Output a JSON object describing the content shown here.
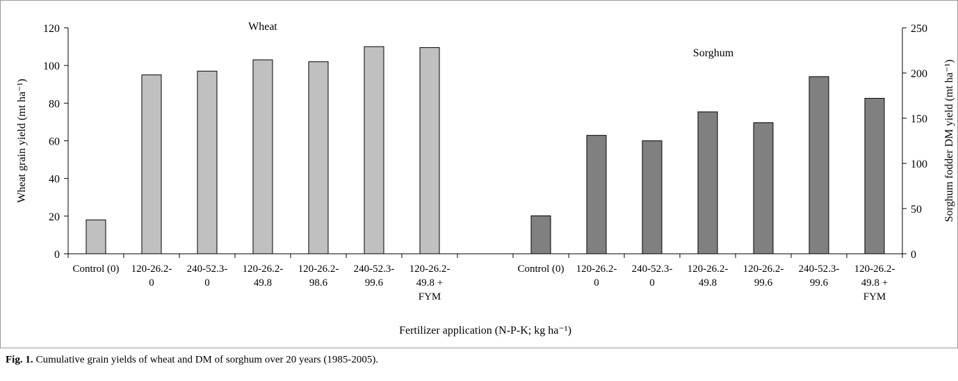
{
  "chart_data": {
    "type": "bar",
    "categories": [
      "Control (0)",
      "120-26.2-\n0",
      "240-52.3-\n0",
      "120-26.2-\n49.8",
      "120-26.2-\n98.6",
      "240-52.3-\n99.6",
      "120-26.2-\n49.8 +\nFYM",
      null,
      "Control (0)",
      "120-26.2-\n0",
      "240-52.3-\n0",
      "120-26.2-\n49.8",
      "120-26.2-\n99.6",
      "240-52.3-\n99.6",
      "120-26.2-\n49.8 +\nFYM"
    ],
    "series": [
      {
        "name": "Wheat",
        "color": "#c0c0c0",
        "values": [
          18,
          95,
          97,
          103,
          102,
          110,
          109.5,
          null,
          null,
          null,
          null,
          null,
          null,
          null,
          null
        ]
      },
      {
        "name": "Sorghum",
        "color": "#808080",
        "axis": "y2",
        "values": [
          null,
          null,
          null,
          null,
          null,
          null,
          null,
          null,
          42,
          131,
          125,
          157,
          145,
          196,
          172
        ]
      }
    ],
    "xlabel": "Fertilizer application (N-P-K; kg ha⁻¹)",
    "ylabel": "Wheat grain yield (mt ha⁻¹)",
    "y2label": "Sorghum fodder DM yield (mt ha⁻¹)",
    "ylim": [
      0,
      120
    ],
    "yticks": [
      0,
      20,
      40,
      60,
      80,
      100,
      120
    ],
    "y2lim": [
      0,
      250
    ],
    "y2ticks": [
      0,
      50,
      100,
      150,
      200,
      250
    ],
    "grid": false
  },
  "caption": {
    "label": "Fig. 1.",
    "text": "Cumulative grain yields of wheat and DM of sorghum over 20 years (1985-2005)."
  }
}
